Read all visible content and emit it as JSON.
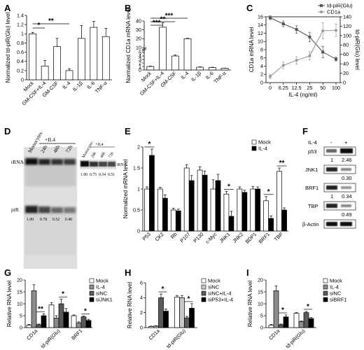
{
  "panel_labels": [
    "A",
    "B",
    "C",
    "D",
    "E",
    "F",
    "G",
    "H",
    "I"
  ],
  "chart_data": [
    {
      "panel": "A",
      "type": "bar",
      "categories": [
        "Mock",
        "GM-CSF+IL-4",
        "GM-CSF",
        "IL-4",
        "IL-1β",
        "IL-6",
        "TNF-α"
      ],
      "values": [
        1.0,
        0.3,
        0.72,
        0.2,
        0.9,
        1.14,
        0.94
      ],
      "errors": [
        0.03,
        0.12,
        0.18,
        0.04,
        0.28,
        0.13,
        0.18
      ],
      "ylabel": "Normalized td-piR(Glu) level",
      "ylim": [
        0,
        1.4
      ],
      "yticks": [
        0,
        0.2,
        0.4,
        0.6,
        0.8,
        1.0,
        1.2,
        1.4
      ],
      "significance": [
        {
          "from": "Mock",
          "to": "GM-CSF+IL-4",
          "label": "*"
        },
        {
          "from": "Mock",
          "to": "IL-4",
          "label": "**"
        }
      ]
    },
    {
      "panel": "B",
      "type": "bar",
      "categories": [
        "Mock",
        "GM-CSF+IL-4",
        "GM-CSF",
        "IL-4",
        "IL-1β",
        "IL-6",
        "TNF-α"
      ],
      "values": [
        1.0,
        33,
        4,
        20,
        0.8,
        0.7,
        0.5
      ],
      "errors": [
        0.1,
        5,
        0.3,
        0.5,
        0.1,
        0.1,
        0.05
      ],
      "ylabel": "Normalized CD1a mRNA level",
      "ylim": [
        0,
        40
      ],
      "yticks": [
        0,
        1,
        2,
        3,
        4,
        5,
        10,
        20,
        30,
        40
      ],
      "axis_break": [
        5,
        10
      ],
      "significance": [
        {
          "from": "Mock",
          "to": "GM-CSF+IL-4",
          "label": "***"
        },
        {
          "from": "Mock",
          "to": "GM-CSF",
          "label": "**"
        },
        {
          "from": "Mock",
          "to": "IL-4",
          "label": "***"
        }
      ]
    },
    {
      "panel": "C",
      "type": "line",
      "x": [
        "0",
        "6.25",
        "12.5",
        "25",
        "50",
        "100"
      ],
      "xlabel": "IL-4 (ng/ml)",
      "series": [
        {
          "name": "td-piR(Glu)",
          "axis": "right",
          "color": "#555555",
          "values": [
            138,
            125,
            113,
            97,
            65,
            50
          ],
          "errors": [
            4,
            6,
            8,
            10,
            12,
            4
          ]
        },
        {
          "name": "CD1a",
          "axis": "left",
          "color": "#9a9a9a",
          "values": [
            1.5,
            4.2,
            5.4,
            6.5,
            12.6,
            12.7
          ],
          "errors": [
            0.5,
            0.8,
            0.9,
            1.0,
            2.0,
            1.5
          ]
        }
      ],
      "ylabel_left": "CD1a mRNA level",
      "ylim_left": [
        0,
        16
      ],
      "yticks_left": [
        0,
        2,
        4,
        6,
        8,
        10,
        12,
        14,
        16
      ],
      "ylabel_right": "td-piR(Glu) level",
      "ylim_right": [
        0,
        140
      ],
      "yticks_right": [
        0,
        20,
        40,
        60,
        80,
        100,
        120,
        140
      ]
    },
    {
      "panel": "E",
      "type": "bar",
      "categories": [
        "P53",
        "CK2",
        "Rb",
        "P107",
        "P130",
        "c-Myc",
        "JNK1",
        "JNK2",
        "BDP1",
        "BRF1",
        "TBP"
      ],
      "series": [
        {
          "name": "Mock",
          "color": "#ffffff",
          "values": [
            1.0,
            1.0,
            0.5,
            1.5,
            1.45,
            1.0,
            0.88,
            1.0,
            1.0,
            0.72,
            1.42
          ],
          "errors": [
            0.05,
            0.04,
            0.04,
            0.08,
            0.08,
            0.22,
            0.06,
            0.05,
            0.06,
            0.1,
            0.08
          ]
        },
        {
          "name": "IL-4",
          "color": "#000000",
          "values": [
            1.8,
            0.78,
            0.48,
            1.2,
            1.33,
            1.2,
            0.35,
            0.92,
            1.0,
            0.3,
            0.5
          ],
          "errors": [
            0.15,
            0.08,
            0.04,
            0.12,
            0.1,
            0.15,
            0.12,
            0.05,
            0.05,
            0.06,
            0.05
          ]
        }
      ],
      "ylabel": "Normalized mRNA level",
      "ylim": [
        0,
        2
      ],
      "yticks": [
        0,
        0.5,
        1.0,
        1.5,
        2.0
      ],
      "legend": "top-right",
      "significance": [
        {
          "at": "P53",
          "label": "*"
        },
        {
          "at": "JNK1",
          "label": "*"
        },
        {
          "at": "BRF1",
          "label": "*"
        },
        {
          "at": "TBP",
          "label": "**"
        }
      ]
    },
    {
      "panel": "G",
      "type": "bar",
      "categories": [
        "CD1a",
        "td-piR(Glu)",
        "BRF1"
      ],
      "series": [
        {
          "name": "Mock",
          "color": "#ffffff",
          "values": [
            1.0,
            9.5,
            5.0
          ],
          "errors": [
            0.3,
            1.0,
            0.3
          ]
        },
        {
          "name": "IL-4",
          "color": "#8c8c8c",
          "values": [
            15.5,
            4.0,
            2.0
          ],
          "errors": [
            2.5,
            1.0,
            0.4
          ]
        },
        {
          "name": "siNC",
          "color": "#5a5a5a",
          "values": [
            1.2,
            10.0,
            4.5
          ],
          "errors": [
            0.3,
            2.0,
            0.4
          ]
        },
        {
          "name": "siJNK1",
          "color": "#000000",
          "values": [
            5.0,
            6.5,
            3.0
          ],
          "errors": [
            0.8,
            1.5,
            0.5
          ]
        }
      ],
      "ylabel": "Relative RNA level",
      "ylim": [
        0,
        20
      ],
      "yticks": [
        0,
        5,
        10,
        15,
        20
      ],
      "legend": "top-right",
      "significance": [
        {
          "at": "CD1a",
          "label": "**"
        },
        {
          "at": "td-piR(Glu)",
          "label": "*"
        },
        {
          "at": "BRF1",
          "label": "*"
        }
      ]
    },
    {
      "panel": "H",
      "type": "bar",
      "categories": [
        "CD1a",
        "td-piR(Glu)"
      ],
      "series": [
        {
          "name": "Mock",
          "color": "#ffffff",
          "values": [
            0.15,
            4.1
          ],
          "errors": [
            0.05,
            0.2
          ]
        },
        {
          "name": "siNC",
          "color": "#c8c8c8",
          "values": [
            0.2,
            4.0
          ],
          "errors": [
            0.05,
            0.3
          ]
        },
        {
          "name": "siNC+IL-4",
          "color": "#5a5a5a",
          "values": [
            4.0,
            1.3
          ],
          "errors": [
            0.5,
            0.2
          ]
        },
        {
          "name": "siP53+IL-4",
          "color": "#000000",
          "values": [
            2.2,
            2.6
          ],
          "errors": [
            0.3,
            0.6
          ]
        }
      ],
      "ylabel": "Relative RNA level",
      "ylim": [
        0,
        6
      ],
      "yticks": [
        0,
        2,
        4,
        6
      ],
      "legend": "top-right",
      "significance": [
        {
          "at": "CD1a",
          "label": "*"
        },
        {
          "at": "td-piR(Glu)",
          "label": "*"
        }
      ]
    },
    {
      "panel": "I",
      "type": "bar",
      "categories": [
        "CD1a",
        "td-piR(Glu)"
      ],
      "series": [
        {
          "name": "Mock",
          "color": "#ffffff",
          "values": [
            1.0,
            6.0
          ],
          "errors": [
            0.3,
            0.3
          ]
        },
        {
          "name": "IL-4",
          "color": "#8c8c8c",
          "values": [
            15.5,
            2.5
          ],
          "errors": [
            2.0,
            0.3
          ]
        },
        {
          "name": "siNC",
          "color": "#5a5a5a",
          "values": [
            1.2,
            6.3
          ],
          "errors": [
            0.3,
            0.5
          ]
        },
        {
          "name": "siBRF1",
          "color": "#000000",
          "values": [
            4.5,
            3.8
          ],
          "errors": [
            0.8,
            0.4
          ]
        }
      ],
      "ylabel": "Relative RNA level",
      "ylim": [
        0,
        20
      ],
      "yticks": [
        0,
        5,
        10,
        15,
        20
      ],
      "legend": "top-right",
      "significance": [
        {
          "at": "CD1a",
          "label": "*"
        },
        {
          "at": "td-piR(Glu)",
          "label": "*"
        }
      ]
    }
  ],
  "panel_D": {
    "treatment_label": "+IL4",
    "lanes": [
      "Monocytes",
      "24h",
      "48h",
      "72h"
    ],
    "tRNA_label": "tRNA",
    "piR_label": "piR",
    "piR_quant": [
      "1.00",
      "0.78",
      "0.52",
      "0.40"
    ],
    "tRNA_quant": [
      "1.00",
      "0.75",
      "0.54",
      "0.51"
    ]
  },
  "panel_F": {
    "conditions": [
      "-",
      "+"
    ],
    "treatment_label": "IL-4",
    "blots": [
      {
        "name": "p53",
        "quant": [
          "1",
          "2.46"
        ]
      },
      {
        "name": "JNK1",
        "quant": [
          "",
          "0.30"
        ]
      },
      {
        "name": "BRF1",
        "quant": [
          "1",
          "0.34"
        ]
      },
      {
        "name": "TBP",
        "quant": [
          "",
          "0.49"
        ]
      },
      {
        "name": "β-Actin",
        "quant": [
          "",
          ""
        ]
      }
    ]
  }
}
